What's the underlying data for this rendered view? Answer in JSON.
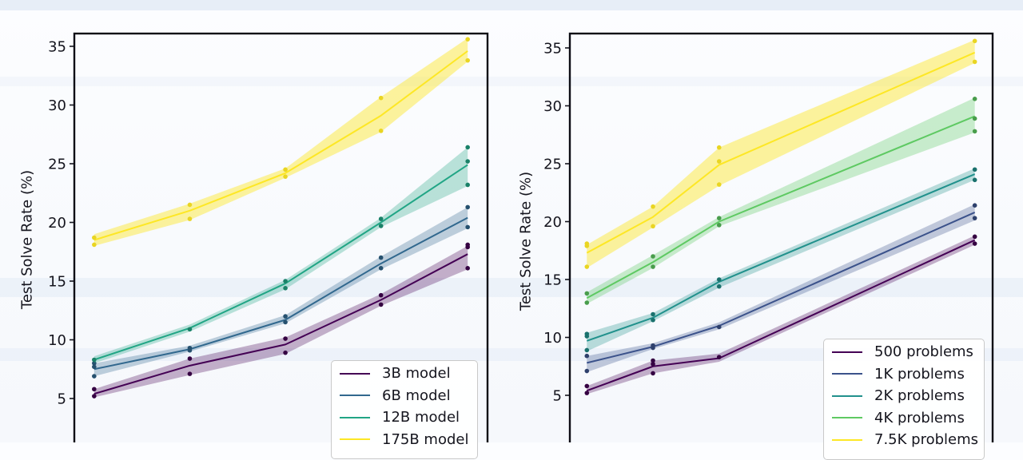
{
  "chart_data": [
    {
      "type": "line",
      "ylabel": "Test Solve Rate (%)",
      "yticks": [
        35,
        30,
        25,
        20,
        15,
        10,
        5
      ],
      "ylim": [
        1.3,
        36.1
      ],
      "xscale": "log",
      "x": [
        500,
        1000,
        2000,
        4000,
        7500
      ],
      "xlim": [
        433,
        8660
      ],
      "grid": false,
      "legend_position": "lower right",
      "series": [
        {
          "name": "3B model",
          "color": "#440154",
          "band_alpha": 0.3,
          "values": [
            5.4,
            7.8,
            9.6,
            13.4,
            17.3
          ],
          "band_low": [
            5.1,
            7.0,
            8.8,
            12.9,
            16.0
          ],
          "band_high": [
            5.8,
            8.4,
            10.2,
            13.9,
            18.0
          ],
          "scatter": [
            [
              5.2,
              5.8
            ],
            [
              7.1,
              8.4
            ],
            [
              8.9,
              10.1
            ],
            [
              13.0,
              13.8
            ],
            [
              16.1,
              17.9,
              18.1
            ]
          ]
        },
        {
          "name": "6B model",
          "color": "#31688e",
          "band_alpha": 0.3,
          "values": [
            7.5,
            9.2,
            11.7,
            16.5,
            20.4
          ],
          "band_low": [
            6.9,
            9.0,
            11.4,
            16.0,
            19.5
          ],
          "band_high": [
            8.0,
            9.5,
            12.1,
            17.1,
            21.3
          ],
          "scatter": [
            [
              6.9,
              7.7,
              8.0
            ],
            [
              9.1,
              9.3
            ],
            [
              11.5,
              12.0
            ],
            [
              16.1,
              17.0
            ],
            [
              19.6,
              21.3
            ]
          ]
        },
        {
          "name": "12B model",
          "color": "#21a585",
          "band_alpha": 0.3,
          "values": [
            8.3,
            11.0,
            14.8,
            20.0,
            24.9
          ],
          "band_low": [
            8.0,
            10.7,
            14.3,
            19.6,
            23.1
          ],
          "band_high": [
            8.6,
            11.3,
            15.1,
            20.4,
            26.4
          ],
          "scatter": [
            [
              8.3
            ],
            [
              10.9
            ],
            [
              14.4,
              15.0
            ],
            [
              19.7,
              20.3
            ],
            [
              23.2,
              25.2,
              26.4
            ]
          ]
        },
        {
          "name": "175B model",
          "color": "#fde725",
          "band_alpha": 0.45,
          "values": [
            18.5,
            21.0,
            24.2,
            29.1,
            34.6
          ],
          "band_low": [
            18.0,
            20.2,
            23.8,
            27.7,
            33.7
          ],
          "band_high": [
            19.0,
            21.6,
            24.6,
            30.7,
            35.7
          ],
          "scatter": [
            [
              18.1,
              18.7
            ],
            [
              20.3,
              21.5
            ],
            [
              23.9,
              24.5
            ],
            [
              27.8,
              30.6
            ],
            [
              33.8,
              35.6
            ]
          ]
        }
      ]
    },
    {
      "type": "line",
      "ylabel": "Test Solve Rate (%)",
      "yticks": [
        35,
        30,
        25,
        20,
        15,
        10,
        5
      ],
      "ylim": [
        1.3,
        36.1
      ],
      "xscale": "log",
      "x": [
        3,
        6,
        12,
        175
      ],
      "xlim": [
        2.51,
        211
      ],
      "grid": false,
      "legend_position": "lower right",
      "series": [
        {
          "name": "500 problems",
          "color": "#440154",
          "band_alpha": 0.3,
          "values": [
            5.4,
            7.5,
            8.2,
            18.4
          ],
          "band_low": [
            5.1,
            6.9,
            7.9,
            18.0
          ],
          "band_high": [
            5.8,
            8.0,
            8.6,
            18.8
          ],
          "scatter": [
            [
              5.2,
              5.8
            ],
            [
              6.9,
              7.7,
              8.0
            ],
            [
              8.3
            ],
            [
              18.1,
              18.7
            ]
          ]
        },
        {
          "name": "1K problems",
          "color": "#3b528b",
          "band_alpha": 0.3,
          "values": [
            7.8,
            9.2,
            11.0,
            20.8
          ],
          "band_low": [
            7.0,
            9.0,
            10.7,
            20.1
          ],
          "band_high": [
            8.4,
            9.5,
            11.3,
            21.5
          ],
          "scatter": [
            [
              7.1,
              8.4
            ],
            [
              9.1,
              9.3
            ],
            [
              10.9
            ],
            [
              20.3,
              21.4
            ]
          ]
        },
        {
          "name": "2K problems",
          "color": "#21918c",
          "band_alpha": 0.3,
          "values": [
            9.7,
            11.7,
            14.8,
            24.1
          ],
          "band_low": [
            8.8,
            11.4,
            14.3,
            23.6
          ],
          "band_high": [
            10.4,
            12.1,
            15.1,
            24.6
          ],
          "scatter": [
            [
              8.9,
              10.1,
              10.3
            ],
            [
              11.5,
              12.0
            ],
            [
              14.4,
              15.0
            ],
            [
              23.6,
              24.5
            ]
          ]
        },
        {
          "name": "4K problems",
          "color": "#5ec962",
          "band_alpha": 0.32,
          "values": [
            13.4,
            16.5,
            20.0,
            29.1
          ],
          "band_low": [
            12.9,
            16.0,
            19.6,
            27.7
          ],
          "band_high": [
            13.9,
            17.1,
            20.4,
            30.7
          ],
          "scatter": [
            [
              13.0,
              13.8
            ],
            [
              16.1,
              17.0
            ],
            [
              19.7,
              20.3
            ],
            [
              27.8,
              28.9,
              30.6
            ]
          ]
        },
        {
          "name": "7.5K problems",
          "color": "#fde725",
          "band_alpha": 0.45,
          "values": [
            17.3,
            20.4,
            24.9,
            34.6
          ],
          "band_low": [
            16.0,
            19.5,
            23.1,
            33.7
          ],
          "band_high": [
            18.0,
            21.3,
            26.4,
            35.7
          ],
          "scatter": [
            [
              16.1,
              17.9,
              18.1
            ],
            [
              19.6,
              21.3
            ],
            [
              23.2,
              25.2,
              26.4
            ],
            [
              33.8,
              35.6
            ]
          ]
        }
      ]
    }
  ]
}
